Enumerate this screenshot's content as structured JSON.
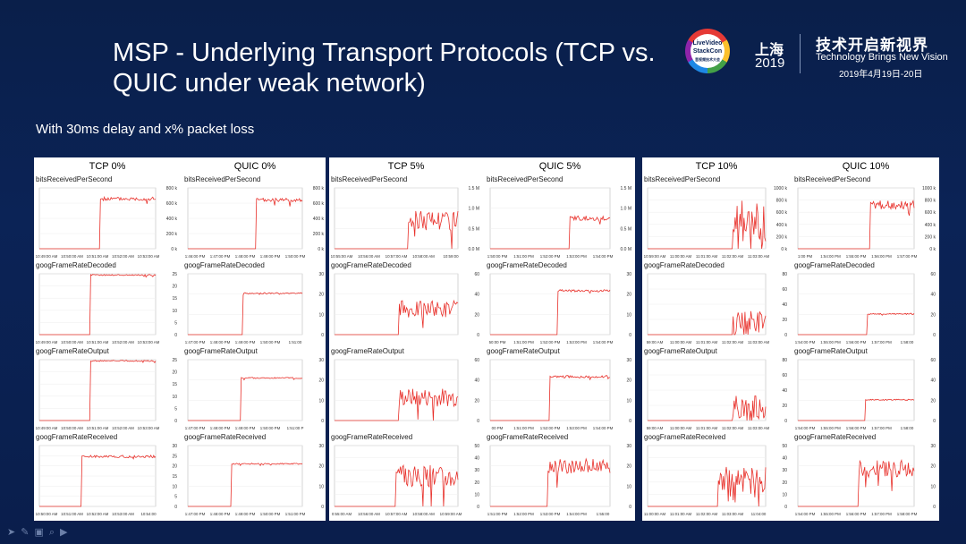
{
  "slide": {
    "title": "MSP - Underlying Transport Protocols (TCP vs. QUIC under weak network)",
    "subtitle": "With 30ms delay and x% packet loss"
  },
  "logo": {
    "brand_line1": "LiveVideo",
    "brand_line2": "StackCon",
    "brand_line3": "音视频技术大会",
    "city": "上海",
    "year": "2019",
    "slogan_cn": "技术开启新视界",
    "slogan_en": "Technology Brings New Vision",
    "date": "2019年4月19日-20日"
  },
  "footer": {
    "icons": [
      "arrow-icon",
      "pen-icon",
      "page-icon",
      "search-icon",
      "video-icon"
    ]
  },
  "colors": {
    "line": "#e8302a",
    "axis": "#333333",
    "bg": "#ffffff"
  },
  "chart_data": [
    {
      "type": "line",
      "group": "TCP 0%",
      "charts": [
        {
          "metric": "bitsReceivedPerSecond",
          "y_ticks": [
            "800 k",
            "600 k",
            "400 k",
            "200 k",
            "0 k"
          ],
          "x_ticks": [
            "10:49:00 AM",
            "10:50:00 AM",
            "10:51:00 AM",
            "10:52:00 AM",
            "10:53:00 AM"
          ],
          "step_at": 0.52,
          "level": 0.82,
          "noise": 0.03
        },
        {
          "metric": "googFrameRateDecoded",
          "y_ticks": [
            "25",
            "20",
            "15",
            "10",
            "5",
            "0"
          ],
          "x_ticks": [
            "10:49:00 AM",
            "10:50:00 AM",
            "10:51:00 AM",
            "10:52:00 AM",
            "10:53:00 AM"
          ],
          "step_at": 0.44,
          "level": 0.98,
          "noise": 0.01
        },
        {
          "metric": "googFrameRateOutput",
          "y_ticks": [
            "25",
            "20",
            "15",
            "10",
            "5",
            "0"
          ],
          "x_ticks": [
            "10:49:00 AM",
            "10:50:00 AM",
            "10:51:00 AM",
            "10:52:00 AM",
            "10:53:00 AM"
          ],
          "step_at": 0.44,
          "level": 0.98,
          "noise": 0.01
        },
        {
          "metric": "googFrameRateReceived",
          "y_ticks": [
            "30",
            "25",
            "20",
            "15",
            "10",
            "5",
            "0"
          ],
          "x_ticks": [
            "10:50:00 AM",
            "10:51:00 AM",
            "10:52:00 AM",
            "10:53:00 AM",
            "10:54:00"
          ],
          "step_at": 0.36,
          "level": 0.82,
          "noise": 0.02
        }
      ]
    },
    {
      "type": "line",
      "group": "QUIC 0%",
      "charts": [
        {
          "metric": "bitsReceivedPerSecond",
          "y_ticks": [
            "800 k",
            "600 k",
            "400 k",
            "200 k",
            "0 k"
          ],
          "x_ticks": [
            "1:46:00 PM",
            "1:47:00 PM",
            "1:48:00 PM",
            "1:49:00 PM",
            "1:50:00 PM"
          ],
          "step_at": 0.6,
          "level": 0.8,
          "noise": 0.03
        },
        {
          "metric": "googFrameRateDecoded",
          "y_ticks": [
            "30",
            "20",
            "10",
            "0"
          ],
          "x_ticks": [
            "1:47:00 PM",
            "1:48:00 PM",
            "1:49:00 PM",
            "1:50:00 PM",
            "1:51:00"
          ],
          "step_at": 0.48,
          "level": 0.68,
          "noise": 0.01
        },
        {
          "metric": "googFrameRateOutput",
          "y_ticks": [
            "30",
            "20",
            "10",
            "0"
          ],
          "x_ticks": [
            "1:47:00 PM",
            "1:48:00 PM",
            "1:49:00 PM",
            "1:50:00 PM",
            "1:51:00 P"
          ],
          "step_at": 0.46,
          "level": 0.7,
          "noise": 0.01
        },
        {
          "metric": "googFrameRateReceived",
          "y_ticks": [
            "30",
            "20",
            "10",
            "0"
          ],
          "x_ticks": [
            "1:47:00 PM",
            "1:48:00 PM",
            "1:49:00 PM",
            "1:50:00 PM",
            "1:51:00 PM"
          ],
          "step_at": 0.38,
          "level": 0.7,
          "noise": 0.01
        }
      ]
    },
    {
      "type": "line",
      "group": "TCP 5%",
      "charts": [
        {
          "metric": "bitsReceivedPerSecond",
          "y_ticks": [
            "1.5 M",
            "1.0 M",
            "0.5 M",
            "0.0 M"
          ],
          "x_ticks": [
            "10:55:00 AM",
            "10:56:00 AM",
            "10:57:00 AM",
            "10:58:00 AM",
            "10:59:00"
          ],
          "step_at": 0.6,
          "level": 0.48,
          "noise": 0.18
        },
        {
          "metric": "googFrameRateDecoded",
          "y_ticks": [
            "60",
            "40",
            "20",
            "0"
          ],
          "x_ticks": [],
          "step_at": 0.52,
          "level": 0.42,
          "noise": 0.14
        },
        {
          "metric": "googFrameRateOutput",
          "y_ticks": [
            "60",
            "40",
            "20",
            "0"
          ],
          "x_ticks": [],
          "step_at": 0.52,
          "level": 0.38,
          "noise": 0.15
        },
        {
          "metric": "googFrameRateReceived",
          "y_ticks": [
            "50",
            "40",
            "30",
            "20",
            "10",
            "0"
          ],
          "x_ticks": [
            "0:55:00 AM",
            "10:56:00 AM",
            "10:57:00 AM",
            "10:58:00 AM",
            "10:59:00 AM"
          ],
          "step_at": 0.5,
          "level": 0.5,
          "noise": 0.18
        }
      ]
    },
    {
      "type": "line",
      "group": "QUIC 5%",
      "charts": [
        {
          "metric": "bitsReceivedPerSecond",
          "y_ticks": [
            "1.5 M",
            "1.0 M",
            "0.5 M",
            "0.0 M"
          ],
          "x_ticks": [
            "1:50:00 PM",
            "1:51:00 PM",
            "1:52:00 PM",
            "1:53:00 PM",
            "1:54:00 PM"
          ],
          "step_at": 0.66,
          "level": 0.5,
          "noise": 0.04
        },
        {
          "metric": "googFrameRateDecoded",
          "y_ticks": [
            "30",
            "20",
            "10",
            "0"
          ],
          "x_ticks": [
            "50:00 PM",
            "1:51:00 PM",
            "1:52:00 PM",
            "1:53:00 PM",
            "1:54:00 PM"
          ],
          "step_at": 0.56,
          "level": 0.72,
          "noise": 0.02
        },
        {
          "metric": "googFrameRateOutput",
          "y_ticks": [
            "30",
            "20",
            "10",
            "0"
          ],
          "x_ticks": [
            "00 PM",
            "1:51:00 PM",
            "1:52:00 PM",
            "1:53:00 PM",
            "1:54:00 PM"
          ],
          "step_at": 0.5,
          "level": 0.72,
          "noise": 0.02
        },
        {
          "metric": "googFrameRateReceived",
          "y_ticks": [
            "30",
            "20",
            "10",
            "0"
          ],
          "x_ticks": [
            "1:51:00 PM",
            "1:52:00 PM",
            "1:53:00 PM",
            "1:54:00 PM",
            "1:55:00"
          ],
          "step_at": 0.48,
          "level": 0.66,
          "noise": 0.12
        }
      ]
    },
    {
      "type": "line",
      "group": "TCP 10%",
      "charts": [
        {
          "metric": "bitsReceivedPerSecond",
          "y_ticks": [
            "1000 k",
            "800 k",
            "600 k",
            "400 k",
            "200 k",
            "0 k"
          ],
          "x_ticks": [
            "10:59:00 AM",
            "11:00:00 AM",
            "11:01:00 AM",
            "11:02:00 AM",
            "11:03:00 AM"
          ],
          "step_at": 0.72,
          "level": 0.45,
          "noise": 0.35
        },
        {
          "metric": "googFrameRateDecoded",
          "y_ticks": [
            "80",
            "60",
            "40",
            "20",
            "0"
          ],
          "x_ticks": [
            "59:00 AM",
            "11:00:00 AM",
            "11:01:00 AM",
            "11:02:00 AM",
            "11:03:00 AM"
          ],
          "step_at": 0.72,
          "level": 0.2,
          "noise": 0.2
        },
        {
          "metric": "googFrameRateOutput",
          "y_ticks": [
            "80",
            "60",
            "40",
            "20",
            "0"
          ],
          "x_ticks": [
            "59:00 AM",
            "11:00:00 AM",
            "11:01:00 AM",
            "11:02:00 AM",
            "11:03:00 AM"
          ],
          "step_at": 0.72,
          "level": 0.22,
          "noise": 0.2
        },
        {
          "metric": "googFrameRateReceived",
          "y_ticks": [
            "50",
            "40",
            "30",
            "20",
            "10",
            "0"
          ],
          "x_ticks": [
            "11:00:00 AM",
            "11:01:00 AM",
            "11:02:00 AM",
            "11:03:00 AM",
            "11:04:00"
          ],
          "step_at": 0.6,
          "level": 0.35,
          "noise": 0.3
        }
      ]
    },
    {
      "type": "line",
      "group": "QUIC 10%",
      "charts": [
        {
          "metric": "bitsReceivedPerSecond",
          "y_ticks": [
            "1000 k",
            "800 k",
            "600 k",
            "400 k",
            "200 k",
            "0 k"
          ],
          "x_ticks": [
            "1:00 PM",
            "1:54:00 PM",
            "1:55:00 PM",
            "1:56:00 PM",
            "1:57:00 PM"
          ],
          "step_at": 0.62,
          "level": 0.72,
          "noise": 0.07
        },
        {
          "metric": "googFrameRateDecoded",
          "y_ticks": [
            "60",
            "40",
            "20",
            "0"
          ],
          "x_ticks": [
            "1:54:00 PM",
            "1:55:00 PM",
            "1:56:00 PM",
            "1:57:00 PM",
            "1:58:00"
          ],
          "step_at": 0.6,
          "level": 0.34,
          "noise": 0.01
        },
        {
          "metric": "googFrameRateOutput",
          "y_ticks": [
            "60",
            "40",
            "20",
            "0"
          ],
          "x_ticks": [
            "1:54:00 PM",
            "1:55:00 PM",
            "1:56:00 PM",
            "1:57:00 PM",
            "1:58:00"
          ],
          "step_at": 0.58,
          "level": 0.34,
          "noise": 0.01
        },
        {
          "metric": "googFrameRateReceived",
          "y_ticks": [
            "30",
            "20",
            "10",
            "0"
          ],
          "x_ticks": [
            "1:54:00 PM",
            "1:55:00 PM",
            "1:56:00 PM",
            "1:57:00 PM",
            "1:58:00 PM"
          ],
          "step_at": 0.52,
          "level": 0.62,
          "noise": 0.14
        }
      ]
    }
  ]
}
